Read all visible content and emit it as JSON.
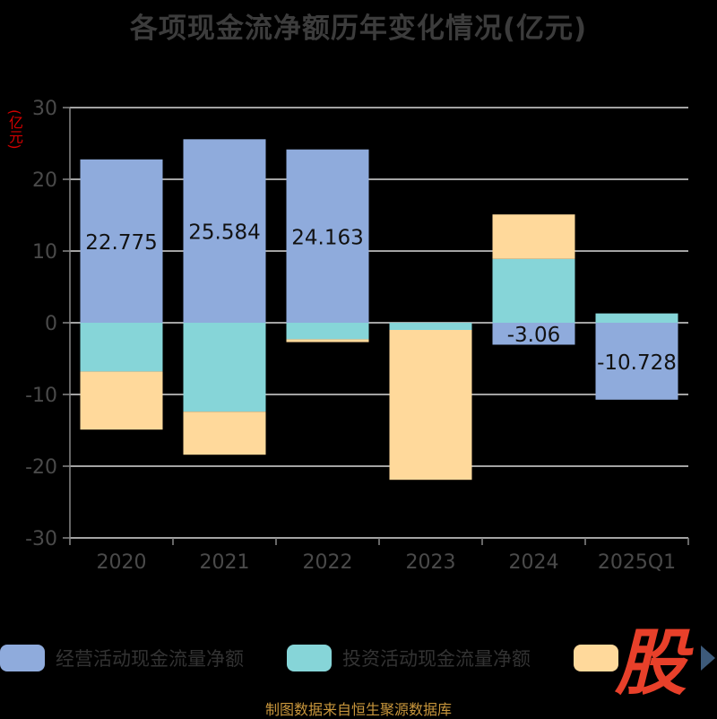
{
  "chart_data": {
    "type": "bar",
    "stacked": true,
    "title": "各项现金流净额历年变化情况(亿元)",
    "ylabel": "(亿元)",
    "categories": [
      "2020",
      "2021",
      "2022",
      "2023",
      "2024",
      "2025Q1"
    ],
    "ylim": [
      -30,
      30
    ],
    "yticks": [
      30,
      20,
      10,
      0,
      -10,
      -20,
      -30
    ],
    "grid": true,
    "legend_position": "bottom",
    "series": [
      {
        "name": "经营活动现金流量净额",
        "color": "#8fabdc",
        "values": [
          22.775,
          25.584,
          24.163,
          0.0,
          -3.06,
          -10.728
        ],
        "labels": [
          "22.775",
          "25.584",
          "24.163",
          "",
          "-3.06",
          "-10.728"
        ]
      },
      {
        "name": "投资活动现金流量净额",
        "color": "#86d5d8",
        "values": [
          -6.8,
          -12.4,
          -2.3,
          -1.0,
          8.9,
          1.3
        ]
      },
      {
        "name": "",
        "color": "#ffd99b",
        "values": [
          -8.1,
          -6.0,
          -0.4,
          -20.9,
          6.2,
          0.0
        ]
      }
    ]
  },
  "logo_text": "股",
  "source": "制图数据来自恒生聚源数据库"
}
